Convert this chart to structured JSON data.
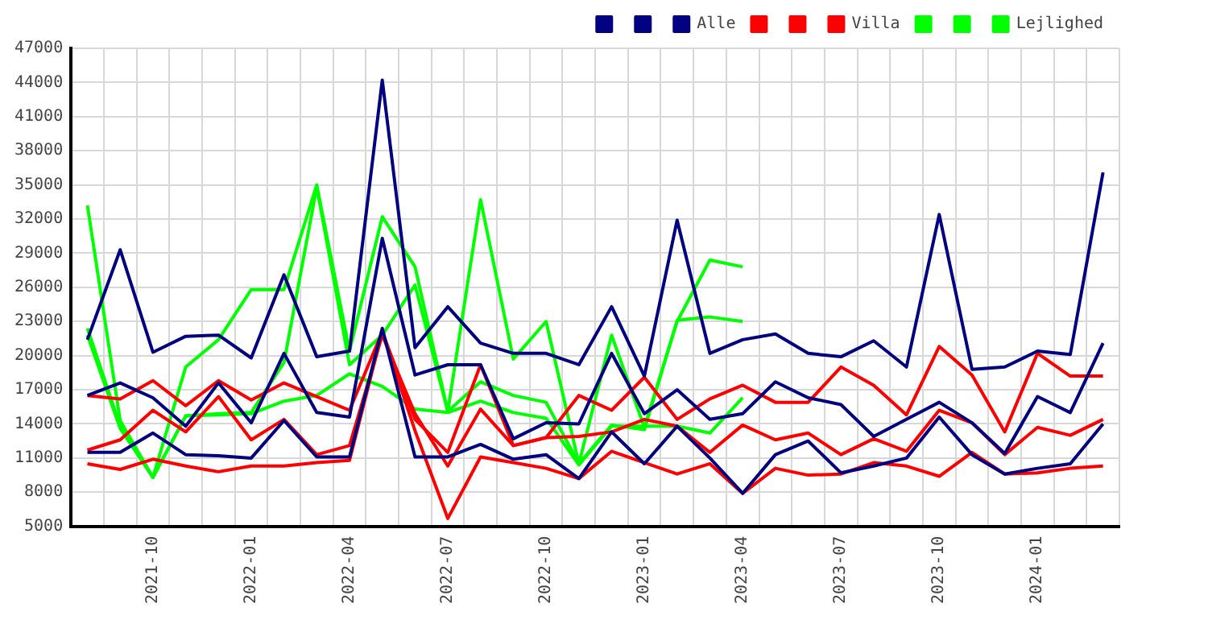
{
  "chart_data": {
    "type": "line",
    "categories": [
      null,
      null,
      "2021-10",
      null,
      null,
      "2022-01",
      null,
      null,
      "2022-04",
      null,
      null,
      "2022-07",
      null,
      null,
      "2022-10",
      null,
      null,
      "2023-01",
      null,
      null,
      "2023-04",
      null,
      null,
      "2023-07",
      null,
      null,
      "2023-10",
      null,
      null,
      "2024-01",
      null,
      null
    ],
    "series": [
      {
        "color": "#000080",
        "values": [
          21400,
          29300,
          20300,
          21700,
          21800,
          19800,
          27100,
          19900,
          20400,
          44200,
          20700,
          24300,
          21100,
          20200,
          20200,
          19200,
          24300,
          18200,
          31900,
          20200,
          21400,
          21900,
          20200,
          19900,
          21300,
          19000,
          32400,
          18800,
          19000,
          20400,
          20100,
          36100
        ]
      },
      {
        "color": "#000080",
        "values": [
          16500,
          17600,
          16300,
          13800,
          17600,
          14100,
          20200,
          15000,
          14600,
          30300,
          18300,
          19200,
          19200,
          12700,
          14100,
          14000,
          20200,
          14900,
          17000,
          14400,
          14900,
          17700,
          16300,
          15700,
          12900,
          14400,
          15900,
          14100,
          11400,
          16400,
          15000,
          21100
        ]
      },
      {
        "name": "Alle",
        "color": "#000080",
        "values": [
          11500,
          11500,
          13200,
          11300,
          11200,
          11000,
          14300,
          11100,
          11100,
          22400,
          11100,
          11100,
          12200,
          10900,
          11300,
          9200,
          13300,
          10500,
          13800,
          11000,
          7900,
          11300,
          12500,
          9700,
          10300,
          11000,
          14600,
          11300,
          9600,
          10100,
          10500,
          14000
        ]
      },
      {
        "color": "#ff0000",
        "values": [
          16500,
          16200,
          17800,
          15600,
          17800,
          16100,
          17600,
          16400,
          15200,
          22100,
          14400,
          11500,
          19200,
          12100,
          12800,
          16500,
          15200,
          18100,
          14400,
          16200,
          17400,
          15900,
          15900,
          19000,
          17400,
          14800,
          20800,
          18300,
          13300,
          20200,
          18200,
          18200
        ]
      },
      {
        "color": "#ff0000",
        "values": [
          11700,
          12600,
          15200,
          13300,
          16400,
          12600,
          14400,
          11300,
          12100,
          21800,
          14900,
          10300,
          15300,
          12100,
          12800,
          12900,
          13300,
          14400,
          13800,
          11500,
          13900,
          12600,
          13200,
          11300,
          12700,
          11600,
          15200,
          14100,
          11300,
          13700,
          13000,
          14400
        ]
      },
      {
        "name": "Villa",
        "color": "#ff0000",
        "values": [
          10500,
          10000,
          10900,
          10300,
          9800,
          10300,
          10300,
          10600,
          10800,
          22100,
          13400,
          5700,
          11100,
          10600,
          10100,
          9200,
          11600,
          10600,
          9600,
          10500,
          7900,
          10100,
          9500,
          9600,
          10600,
          10300,
          9400,
          11500,
          9600,
          9700,
          10100,
          10300
        ]
      },
      {
        "color": "#00ff00",
        "values": [
          33200,
          14300,
          9300,
          19000,
          21400,
          25800,
          25800,
          35000,
          20400,
          32200,
          27800,
          15100,
          33700,
          19700,
          23000,
          10500,
          21800,
          13700,
          23000,
          28400,
          27800,
          null,
          null,
          null,
          null,
          null,
          null,
          null,
          null,
          null,
          null,
          null
        ]
      },
      {
        "color": "#00ff00",
        "values": [
          22400,
          13800,
          9300,
          14700,
          14900,
          15000,
          19400,
          34800,
          19200,
          21800,
          26200,
          15100,
          17700,
          16500,
          15900,
          10500,
          13900,
          13500,
          23100,
          23400,
          23000,
          null,
          null,
          null,
          null,
          null,
          null,
          null,
          null,
          null,
          null,
          null
        ]
      },
      {
        "name": "Lejlighed",
        "color": "#00ff00",
        "values": [
          21800,
          13600,
          9300,
          14700,
          14800,
          14900,
          16000,
          16500,
          18400,
          17300,
          15300,
          15000,
          16000,
          15000,
          14500,
          10400,
          13800,
          13800,
          13800,
          13200,
          16300,
          null,
          null,
          null,
          null,
          null,
          null,
          null,
          null,
          null,
          null,
          null
        ]
      }
    ],
    "ylim": [
      5000,
      47000
    ],
    "yticks": [
      5000,
      8000,
      11000,
      14000,
      17000,
      20000,
      23000,
      26000,
      29000,
      32000,
      35000,
      38000,
      41000,
      44000,
      47000
    ],
    "grid": true,
    "legend": "top right",
    "marker": "none",
    "line_style": "solid"
  }
}
